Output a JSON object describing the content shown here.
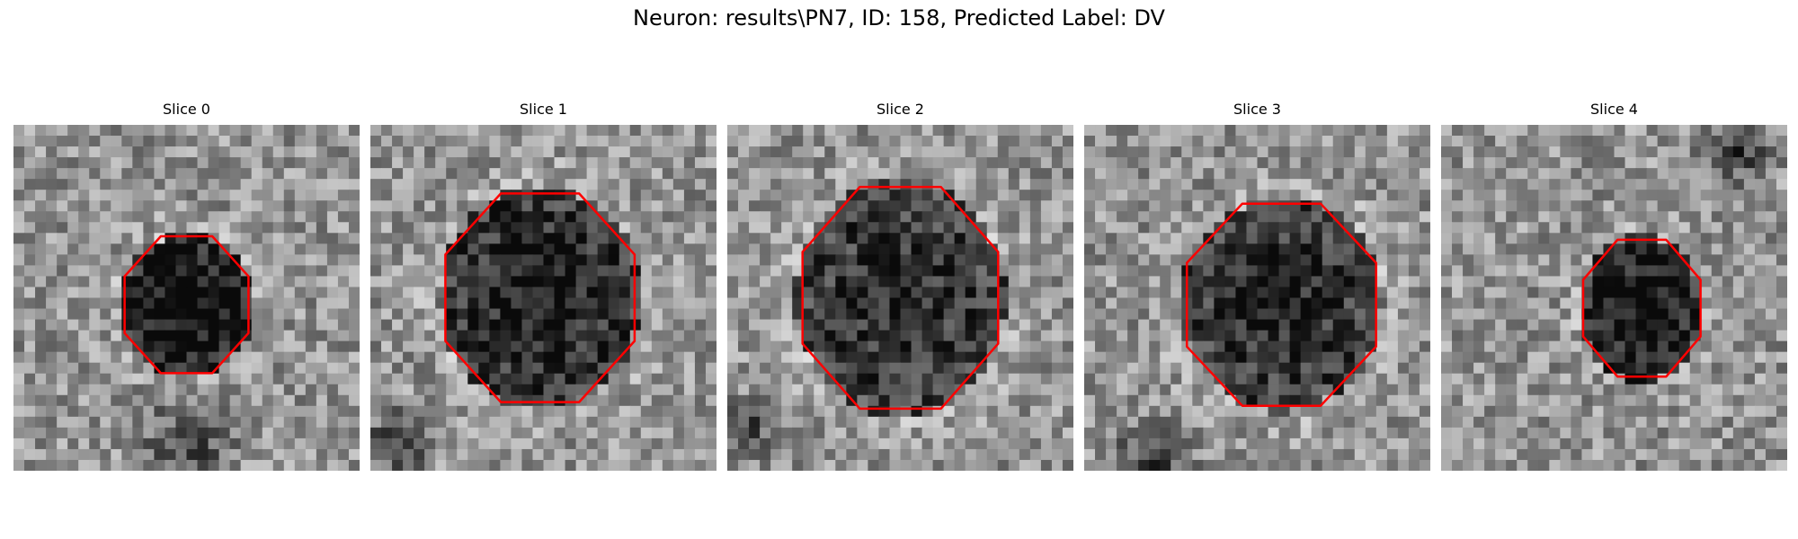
{
  "figure": {
    "title": "Neuron: results\\PN7, ID: 158, Predicted Label: DV"
  },
  "panels": [
    {
      "title": "Slice 0"
    },
    {
      "title": "Slice 1"
    },
    {
      "title": "Slice 2"
    },
    {
      "title": "Slice 3"
    },
    {
      "title": "Slice 4"
    }
  ],
  "colors": {
    "contour": "#ff0000",
    "background": "#ffffff"
  }
}
